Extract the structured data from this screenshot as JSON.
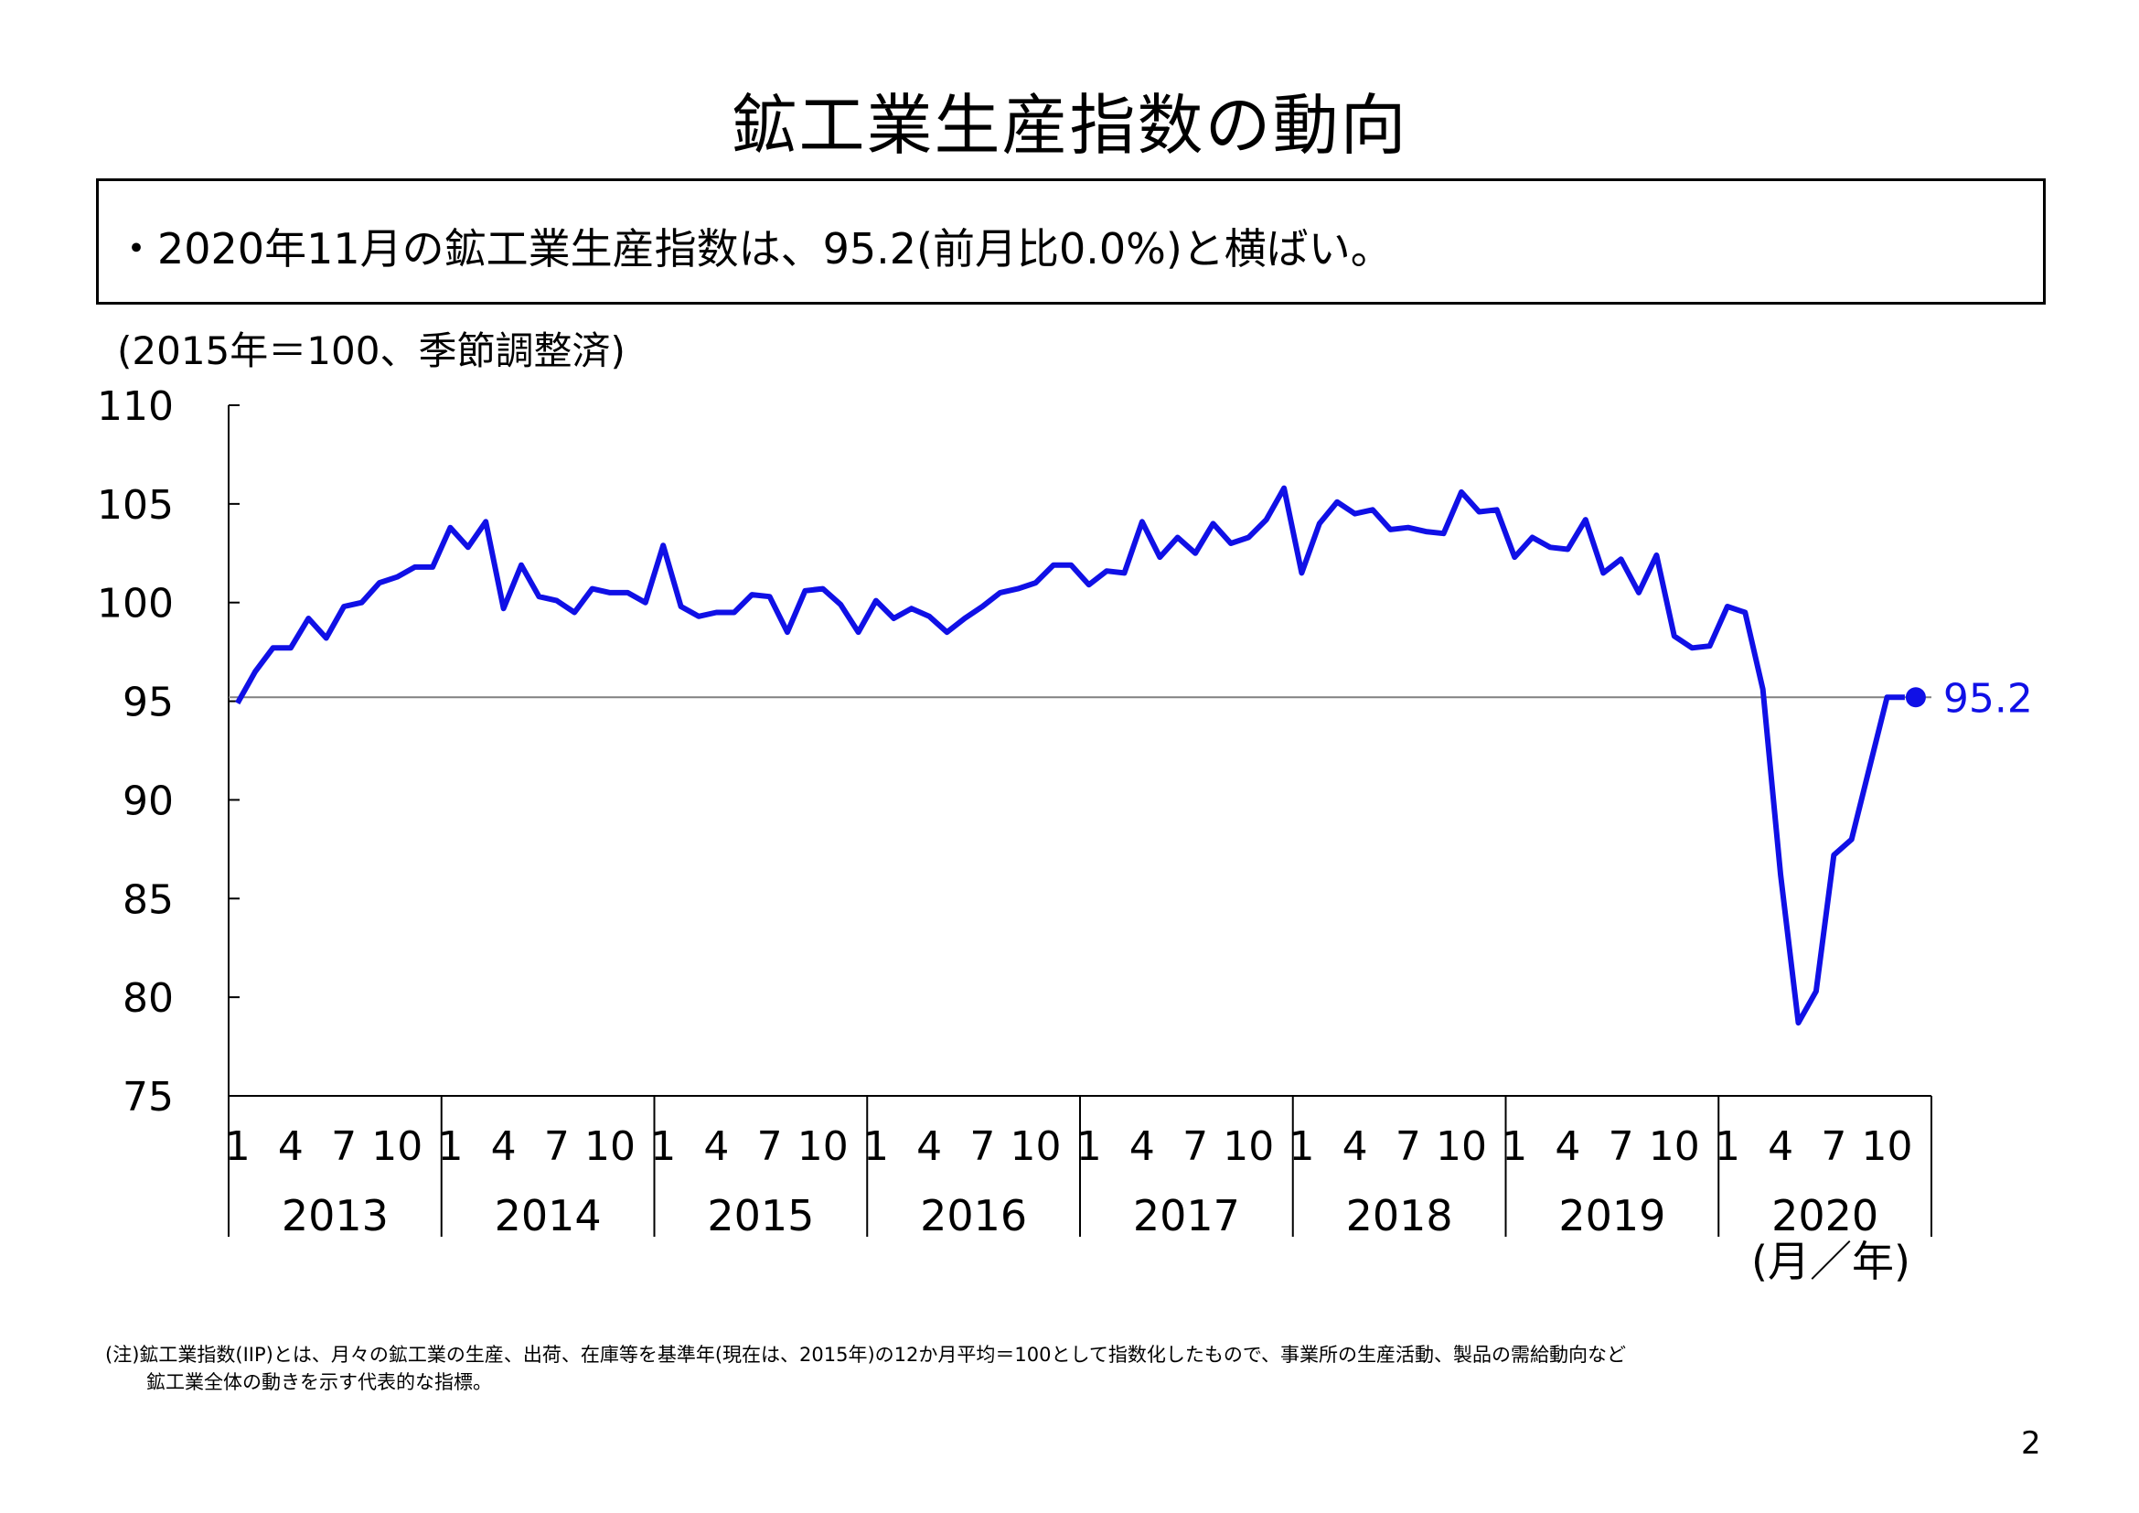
{
  "title": "鉱工業生産指数の動向",
  "summary": "・2020年11月の鉱工業生産指数は、95.2(前月比0.0%)と横ばい。",
  "note_line1": "(注)鉱工業指数(IIP)とは、月々の鉱工業の生産、出荷、在庫等を基準年(現在は、2015年)の12か月平均＝100として指数化したもので、事業所の生産活動、製品の需給動向など",
  "note_line2": "鉱工業全体の動きを示す代表的な指標。",
  "page_number": "2",
  "chart_data": {
    "type": "line",
    "ylabel": "(2015年＝100、季節調整済)",
    "xlabel": "(月／年)",
    "ylim": [
      75,
      110
    ],
    "yticks": [
      75,
      80,
      85,
      90,
      95,
      100,
      105,
      110
    ],
    "reference_line": 95.2,
    "last_value_label": "95.2",
    "month_ticks": [
      "1",
      "4",
      "7",
      "10"
    ],
    "years": [
      "2013",
      "2014",
      "2015",
      "2016",
      "2017",
      "2018",
      "2019",
      "2020"
    ],
    "line_color": "#1010e6",
    "reference_color": "#808080",
    "series": [
      {
        "values": [
          94.9,
          96.5,
          97.7,
          97.7,
          99.2,
          98.2,
          99.8,
          100.0,
          101.0,
          101.3,
          101.8,
          101.8,
          103.8,
          102.8,
          104.1,
          99.7,
          101.9,
          100.3,
          100.1,
          99.5,
          100.7,
          100.5,
          100.5,
          100.0,
          102.9,
          99.8,
          99.3,
          99.5,
          99.5,
          100.4,
          100.3,
          98.5,
          100.6,
          100.7,
          99.9,
          98.5,
          100.1,
          99.2,
          99.7,
          99.3,
          98.5,
          99.2,
          99.8,
          100.5,
          100.7,
          101.0,
          101.9,
          101.9,
          100.9,
          101.6,
          101.5,
          104.1,
          102.3,
          103.3,
          102.5,
          104.0,
          103.0,
          103.3,
          104.2,
          105.8,
          101.5,
          104.0,
          105.1,
          104.5,
          104.7,
          103.7,
          103.8,
          103.6,
          103.5,
          105.6,
          104.6,
          104.7,
          102.3,
          103.3,
          102.8,
          102.7,
          104.2,
          101.5,
          102.2,
          100.5,
          102.4,
          98.3,
          97.7,
          97.8,
          99.8,
          99.5,
          95.6,
          86.2,
          78.7,
          80.3,
          87.2,
          88.0,
          91.6,
          95.2,
          95.2
        ]
      }
    ]
  }
}
